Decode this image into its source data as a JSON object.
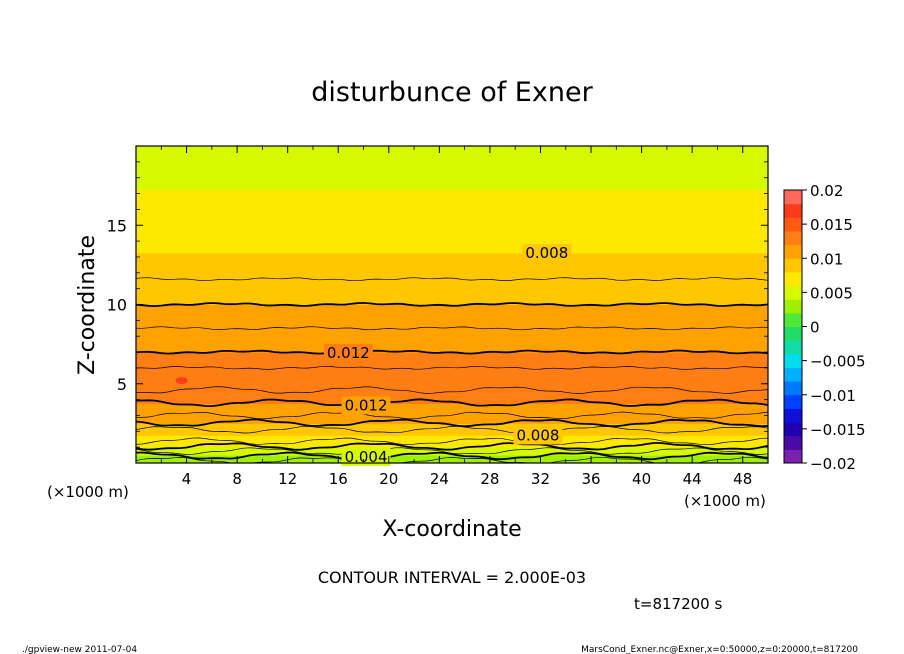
{
  "chart_data": {
    "type": "contour",
    "title": "disturbunce of Exner",
    "xlabel": "X-coordinate",
    "ylabel": "Z-coordinate",
    "x_unit_left": "(×1000 m)",
    "x_unit_right": "(×1000 m)",
    "xlim": [
      0,
      50
    ],
    "ylim": [
      0,
      20
    ],
    "x_ticks": [
      4,
      8,
      12,
      16,
      20,
      24,
      28,
      32,
      36,
      40,
      44,
      48
    ],
    "y_ticks": [
      5,
      10,
      15
    ],
    "contour_interval_text": "CONTOUR INTERVAL = 2.000E-03",
    "time_text": "t=817200 s",
    "contour_labels": [
      {
        "text": "0.008",
        "x": 32.5,
        "z": 13.3
      },
      {
        "text": "0.012",
        "x": 16.8,
        "z": 7.0
      },
      {
        "text": "0.012",
        "x": 18.2,
        "z": 3.7
      },
      {
        "text": "0.008",
        "x": 31.8,
        "z": 1.8
      },
      {
        "text": "0.004",
        "x": 18.2,
        "z": 0.45
      }
    ],
    "field_profile": [
      {
        "z": 0.0,
        "value": 0.0025
      },
      {
        "z": 0.6,
        "value": 0.0045
      },
      {
        "z": 1.2,
        "value": 0.0065
      },
      {
        "z": 1.7,
        "value": 0.008
      },
      {
        "z": 2.3,
        "value": 0.0095
      },
      {
        "z": 3.0,
        "value": 0.011
      },
      {
        "z": 3.8,
        "value": 0.012
      },
      {
        "z": 5.0,
        "value": 0.0135
      },
      {
        "z": 6.0,
        "value": 0.013
      },
      {
        "z": 7.0,
        "value": 0.012
      },
      {
        "z": 8.5,
        "value": 0.011
      },
      {
        "z": 10.0,
        "value": 0.01
      },
      {
        "z": 11.6,
        "value": 0.009
      },
      {
        "z": 13.3,
        "value": 0.008
      },
      {
        "z": 15.3,
        "value": 0.007
      },
      {
        "z": 17.3,
        "value": 0.006
      },
      {
        "z": 20.0,
        "value": 0.0052
      }
    ],
    "colorbar": {
      "ticks": [
        "0.02",
        "0.015",
        "0.01",
        "0.005",
        "0",
        "−0.005",
        "−0.01",
        "−0.015",
        "−0.02"
      ],
      "levels": [
        {
          "value": 0.02,
          "color": "#ff9aa6"
        },
        {
          "value": 0.018,
          "color": "#ff6a5a"
        },
        {
          "value": 0.016,
          "color": "#ff3a1a"
        },
        {
          "value": 0.014,
          "color": "#ff5a12"
        },
        {
          "value": 0.012,
          "color": "#ff7f14"
        },
        {
          "value": 0.01,
          "color": "#ffa200"
        },
        {
          "value": 0.008,
          "color": "#ffc700"
        },
        {
          "value": 0.006,
          "color": "#ffe800"
        },
        {
          "value": 0.004,
          "color": "#d6f800"
        },
        {
          "value": 0.002,
          "color": "#9ef000"
        },
        {
          "value": 0.0,
          "color": "#4ee83a"
        },
        {
          "value": -0.002,
          "color": "#22dc66"
        },
        {
          "value": -0.004,
          "color": "#10dca8"
        },
        {
          "value": -0.006,
          "color": "#00dcec"
        },
        {
          "value": -0.008,
          "color": "#00b0ff"
        },
        {
          "value": -0.01,
          "color": "#0078ff"
        },
        {
          "value": -0.012,
          "color": "#0040ff"
        },
        {
          "value": -0.014,
          "color": "#1010d8"
        },
        {
          "value": -0.016,
          "color": "#2000b0"
        },
        {
          "value": -0.018,
          "color": "#4a0aa8"
        },
        {
          "value": -0.02,
          "color": "#7a22b0"
        }
      ]
    }
  },
  "footer": {
    "left": "./gpview-new   2011-07-04",
    "right": "MarsCond_Exner.nc@Exner,x=0:50000,z=0:20000,t=817200"
  }
}
